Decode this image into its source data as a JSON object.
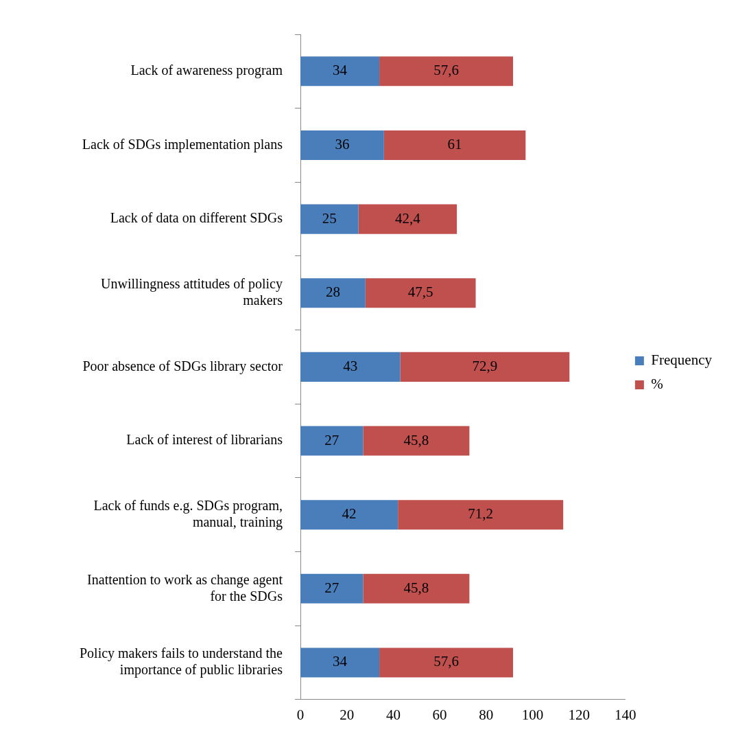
{
  "chart_data": {
    "type": "bar",
    "orientation": "horizontal",
    "stacked": true,
    "categories": [
      "Lack of awareness program",
      "Lack of SDGs implementation plans",
      "Lack of data on different SDGs",
      "Unwillingness attitudes of policy makers",
      "Poor absence of SDGs library sector",
      "Lack of interest of librarians",
      "Lack of funds e.g. SDGs program, manual, training",
      "Inattention to work as change agent for the SDGs",
      "Policy makers fails to understand the importance of public libraries"
    ],
    "series": [
      {
        "name": "Frequency",
        "color": "#4a7ebb",
        "values": [
          34,
          36,
          25,
          28,
          43,
          27,
          42,
          27,
          34
        ],
        "value_labels": [
          "34",
          "36",
          "25",
          "28",
          "43",
          "27",
          "42",
          "27",
          "34"
        ]
      },
      {
        "name": "%",
        "color": "#c0504d",
        "values": [
          57.6,
          61,
          42.4,
          47.5,
          72.9,
          45.8,
          71.2,
          45.8,
          57.6
        ],
        "value_labels": [
          "57,6",
          "61",
          "42,4",
          "47,5",
          "72,9",
          "45,8",
          "71,2",
          "45,8",
          "57,6"
        ]
      }
    ],
    "xlim": [
      0,
      140
    ],
    "xticks": [
      0,
      20,
      40,
      60,
      80,
      100,
      120,
      140
    ],
    "grid": false,
    "legend": "right"
  }
}
